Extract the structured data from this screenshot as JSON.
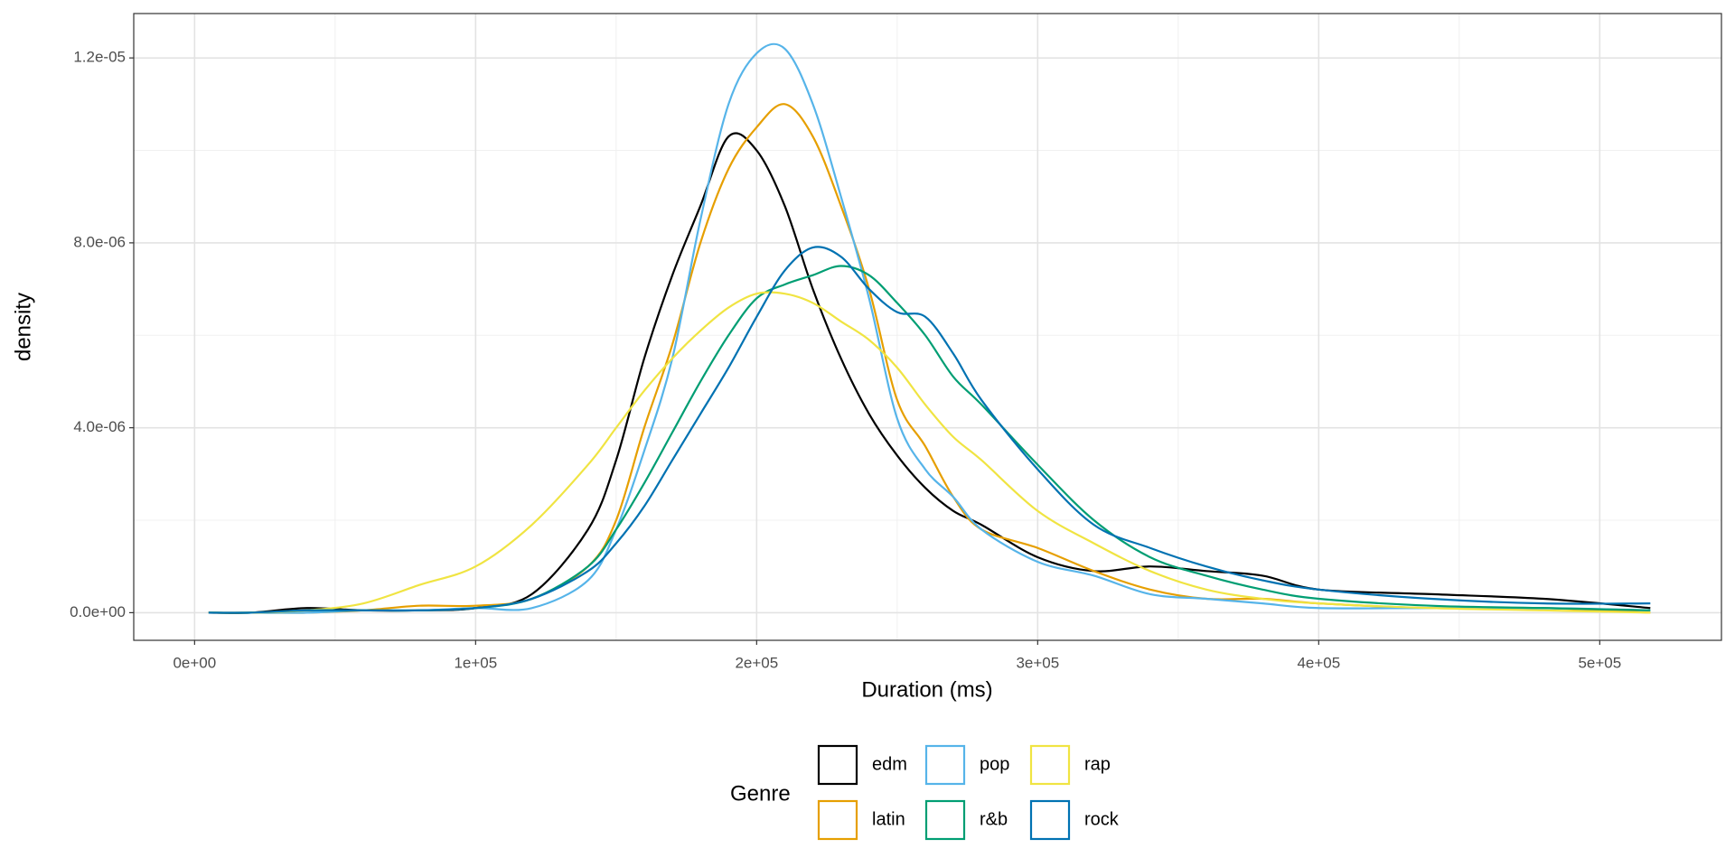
{
  "chart_data": {
    "type": "line",
    "x_label": "Duration (ms)",
    "y_label": "density",
    "legend_title": "Genre",
    "legend_position": "bottom",
    "grid": true,
    "xlim": [
      -21654,
      543307
    ],
    "ylim": [
      -5.98e-07,
      1.296e-05
    ],
    "xticks": [
      {
        "value": 0,
        "label": "0e+00"
      },
      {
        "value": 100000,
        "label": "1e+05"
      },
      {
        "value": 200000,
        "label": "2e+05"
      },
      {
        "value": 300000,
        "label": "3e+05"
      },
      {
        "value": 400000,
        "label": "4e+05"
      },
      {
        "value": 500000,
        "label": "5e+05"
      }
    ],
    "yticks": [
      {
        "value": 0,
        "label": "0.0e+00"
      },
      {
        "value": 4e-06,
        "label": "4.0e-06"
      },
      {
        "value": 8e-06,
        "label": "8.0e-06"
      },
      {
        "value": 1.2e-05,
        "label": "1.2e-05"
      }
    ],
    "x": [
      5000,
      20000,
      40000,
      60000,
      80000,
      100000,
      120000,
      140000,
      150000,
      160000,
      170000,
      180000,
      190000,
      200000,
      210000,
      220000,
      230000,
      240000,
      250000,
      260000,
      270000,
      280000,
      300000,
      320000,
      340000,
      360000,
      380000,
      400000,
      440000,
      480000,
      518000
    ],
    "series": [
      {
        "name": "edm",
        "color": "#000000",
        "values": [
          0,
          0,
          1e-07,
          5e-08,
          5e-08,
          1e-07,
          4e-07,
          1.8e-06,
          3.3e-06,
          5.5e-06,
          7.3e-06,
          8.8e-06,
          1.03e-05,
          1e-05,
          8.8e-06,
          7e-06,
          5.5e-06,
          4.3e-06,
          3.4e-06,
          2.7e-06,
          2.2e-06,
          1.9e-06,
          1.2e-06,
          9e-07,
          1e-06,
          9e-07,
          8e-07,
          5e-07,
          4e-07,
          3e-07,
          1e-07
        ]
      },
      {
        "name": "latin",
        "color": "#E69F00",
        "values": [
          0,
          0,
          0,
          5e-08,
          1.5e-07,
          1.5e-07,
          3e-07,
          1e-06,
          2e-06,
          4e-06,
          5.8e-06,
          8e-06,
          9.6e-06,
          1.05e-05,
          1.1e-05,
          1.03e-05,
          8.8e-06,
          7e-06,
          4.6e-06,
          3.6e-06,
          2.5e-06,
          1.8e-06,
          1.4e-06,
          9e-07,
          5e-07,
          3e-07,
          3e-07,
          2e-07,
          1e-07,
          1e-07,
          0
        ]
      },
      {
        "name": "pop",
        "color": "#56B4E9",
        "values": [
          0,
          0,
          0,
          5e-08,
          5e-08,
          1e-07,
          1e-07,
          7e-07,
          1.8e-06,
          3.5e-06,
          5.5e-06,
          8.5e-06,
          1.1e-05,
          1.21e-05,
          1.22e-05,
          1.1e-05,
          9e-06,
          6.8e-06,
          4.2e-06,
          3.1e-06,
          2.5e-06,
          1.8e-06,
          1.1e-06,
          8e-07,
          4e-07,
          3e-07,
          2e-07,
          1e-07,
          1e-07,
          1e-07,
          5e-08
        ]
      },
      {
        "name": "r&b",
        "color": "#009E73",
        "values": [
          0,
          0,
          5e-08,
          5e-08,
          5e-08,
          1e-07,
          3e-07,
          1e-06,
          1.8e-06,
          2.8e-06,
          3.9e-06,
          5e-06,
          6e-06,
          6.8e-06,
          7.1e-06,
          7.3e-06,
          7.5e-06,
          7.3e-06,
          6.7e-06,
          6e-06,
          5.1e-06,
          4.5e-06,
          3.2e-06,
          2e-06,
          1.2e-06,
          8e-07,
          5e-07,
          3e-07,
          1.5e-07,
          1e-07,
          5e-08
        ]
      },
      {
        "name": "rap",
        "color": "#F0E442",
        "values": [
          0,
          0,
          5e-08,
          2e-07,
          6e-07,
          1e-06,
          1.9e-06,
          3.2e-06,
          4e-06,
          4.8e-06,
          5.5e-06,
          6.1e-06,
          6.6e-06,
          6.9e-06,
          6.9e-06,
          6.7e-06,
          6.3e-06,
          5.9e-06,
          5.3e-06,
          4.5e-06,
          3.8e-06,
          3.3e-06,
          2.2e-06,
          1.5e-06,
          9e-07,
          5e-07,
          3e-07,
          2e-07,
          1e-07,
          5e-08,
          0
        ]
      },
      {
        "name": "rock",
        "color": "#0072B2",
        "values": [
          0,
          0,
          5e-08,
          5e-08,
          5e-08,
          1e-07,
          3e-07,
          9e-07,
          1.5e-06,
          2.3e-06,
          3.3e-06,
          4.3e-06,
          5.3e-06,
          6.4e-06,
          7.4e-06,
          7.9e-06,
          7.7e-06,
          7e-06,
          6.5e-06,
          6.4e-06,
          5.6e-06,
          4.6e-06,
          3.1e-06,
          1.9e-06,
          1.4e-06,
          1e-06,
          7e-07,
          5e-07,
          3e-07,
          2e-07,
          2e-07
        ]
      }
    ]
  }
}
